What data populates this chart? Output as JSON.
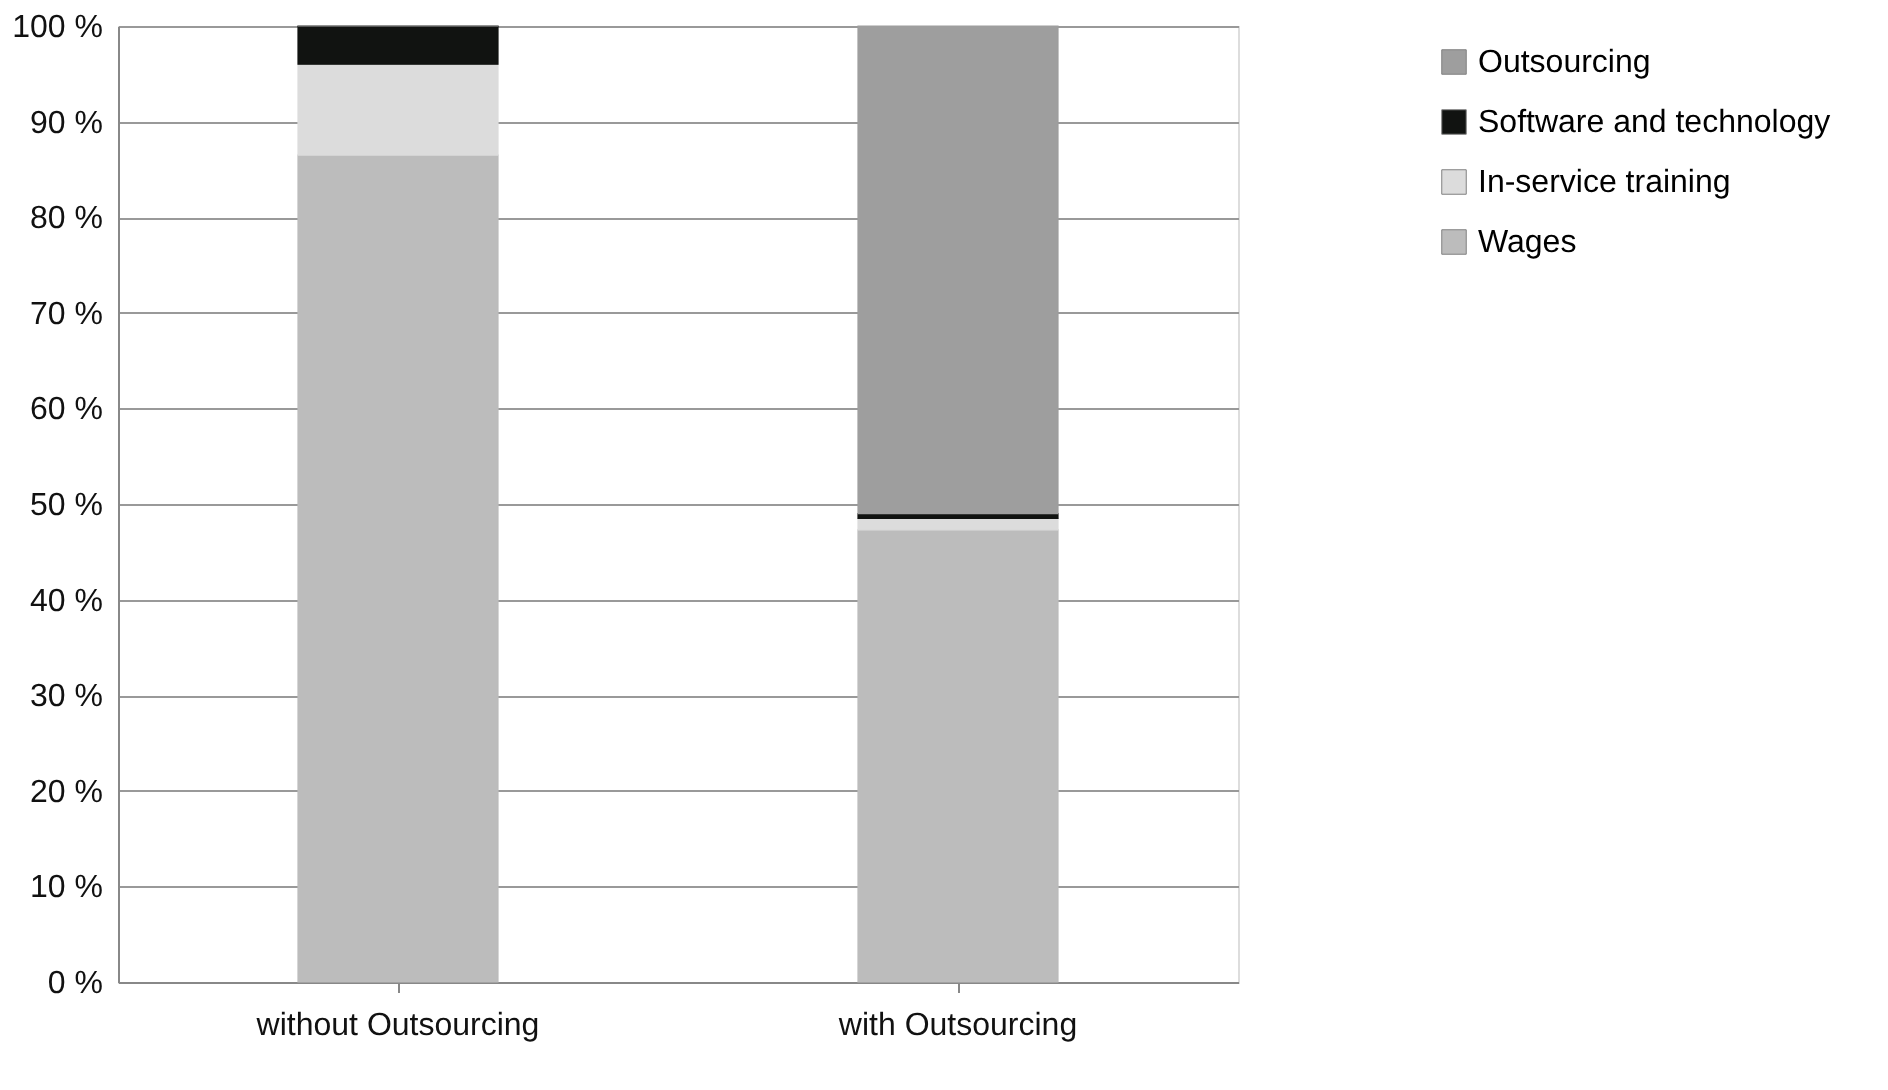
{
  "chart_data": {
    "type": "bar",
    "stacked": true,
    "categories": [
      "without Outsourcing",
      "with Outsourcing"
    ],
    "series": [
      {
        "name": "Wages",
        "color": "#bcbcbc",
        "values": [
          86.5,
          47.3
        ]
      },
      {
        "name": "In-service training",
        "color": "#dcdcdc",
        "values": [
          9.5,
          1.2
        ]
      },
      {
        "name": "Software and technology",
        "color": "#111311",
        "values": [
          4,
          0.5
        ]
      },
      {
        "name": "Outsourcing",
        "color": "#9e9e9e",
        "values": [
          0,
          51
        ]
      }
    ],
    "ylim": [
      0,
      100
    ],
    "yticks": [
      {
        "value": 0,
        "label": "0 %"
      },
      {
        "value": 10,
        "label": "10 %"
      },
      {
        "value": 20,
        "label": "20 %"
      },
      {
        "value": 30,
        "label": "30 %"
      },
      {
        "value": 40,
        "label": "40 %"
      },
      {
        "value": 50,
        "label": "50 %"
      },
      {
        "value": 60,
        "label": "60 %"
      },
      {
        "value": 70,
        "label": "70 %"
      },
      {
        "value": 80,
        "label": "80 %"
      },
      {
        "value": 90,
        "label": "90 %"
      },
      {
        "value": 100,
        "label": "100 %"
      }
    ],
    "grid": "y",
    "legend": "right"
  }
}
